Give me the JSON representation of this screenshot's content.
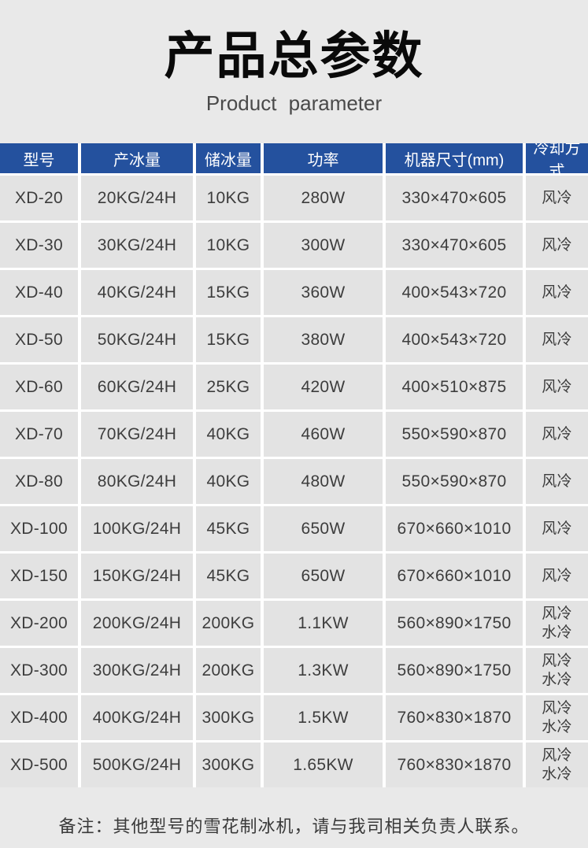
{
  "page": {
    "title": "产品总参数",
    "subtitle": "Product parameter",
    "note": "备注：其他型号的雪花制冰机，请与我司相关负责人联系。"
  },
  "table": {
    "headers": [
      "型号",
      "产冰量",
      "储冰量",
      "功率",
      "机器尺寸(mm)",
      "冷却方式"
    ],
    "rows": [
      [
        "XD-20",
        "20KG/24H",
        "10KG",
        "280W",
        "330×470×605",
        "风冷"
      ],
      [
        "XD-30",
        "30KG/24H",
        "10KG",
        "300W",
        "330×470×605",
        "风冷"
      ],
      [
        "XD-40",
        "40KG/24H",
        "15KG",
        "360W",
        "400×543×720",
        "风冷"
      ],
      [
        "XD-50",
        "50KG/24H",
        "15KG",
        "380W",
        "400×543×720",
        "风冷"
      ],
      [
        "XD-60",
        "60KG/24H",
        "25KG",
        "420W",
        "400×510×875",
        "风冷"
      ],
      [
        "XD-70",
        "70KG/24H",
        "40KG",
        "460W",
        "550×590×870",
        "风冷"
      ],
      [
        "XD-80",
        "80KG/24H",
        "40KG",
        "480W",
        "550×590×870",
        "风冷"
      ],
      [
        "XD-100",
        "100KG/24H",
        "45KG",
        "650W",
        "670×660×1010",
        "风冷"
      ],
      [
        "XD-150",
        "150KG/24H",
        "45KG",
        "650W",
        "670×660×1010",
        "风冷"
      ],
      [
        "XD-200",
        "200KG/24H",
        "200KG",
        "1.1KW",
        "560×890×1750",
        "风冷\n水冷"
      ],
      [
        "XD-300",
        "300KG/24H",
        "200KG",
        "1.3KW",
        "560×890×1750",
        "风冷\n水冷"
      ],
      [
        "XD-400",
        "400KG/24H",
        "300KG",
        "1.5KW",
        "760×830×1870",
        "风冷\n水冷"
      ],
      [
        "XD-500",
        "500KG/24H",
        "300KG",
        "1.65KW",
        "760×830×1870",
        "风冷\n水冷"
      ]
    ]
  },
  "colors": {
    "page_bg": "#e9e9e9",
    "cell_bg": "#e3e3e3",
    "header_bg": "#24519e",
    "header_text": "#ffffff",
    "cell_text": "#3d3d3d",
    "gap": "#ffffff"
  }
}
